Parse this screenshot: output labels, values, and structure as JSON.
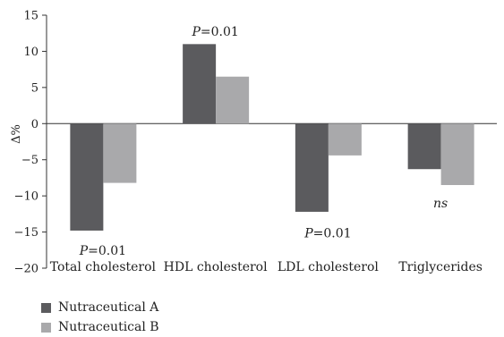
{
  "chart_data": {
    "type": "bar",
    "categories": [
      "Total cholesterol",
      "HDL cholesterol",
      "LDL cholesterol",
      "Triglycerides"
    ],
    "series": [
      {
        "name": "Nutraceutical A",
        "values": [
          -14.8,
          11.0,
          -12.2,
          -6.3
        ],
        "color": "#5b5b5e"
      },
      {
        "name": "Nutraceutical B",
        "values": [
          -8.2,
          6.5,
          -4.4,
          -8.5
        ],
        "color": "#a9a9ab"
      }
    ],
    "ylabel": "Δ%",
    "ylim": [
      -20,
      15
    ],
    "yticks": [
      15,
      10,
      5,
      0,
      -5,
      -10,
      -15,
      -20
    ],
    "ytick_labels": [
      "15",
      "10",
      "5",
      "0",
      "−5",
      "−10",
      "−15",
      "−20"
    ],
    "grid": false,
    "legend_position": "bottom-left",
    "annotations": [
      {
        "category": "Total cholesterol",
        "p_prefix": "P",
        "text": "=0.01",
        "y": -17.5
      },
      {
        "category": "HDL cholesterol",
        "p_prefix": "P",
        "text": "=0.01",
        "y": 12.8
      },
      {
        "category": "LDL cholesterol",
        "p_prefix": "P",
        "text": "=0.01",
        "y": -15.1
      },
      {
        "category": "Triglycerides",
        "p_prefix": "",
        "text": "ns",
        "y": -11.0,
        "italic": true
      }
    ]
  }
}
